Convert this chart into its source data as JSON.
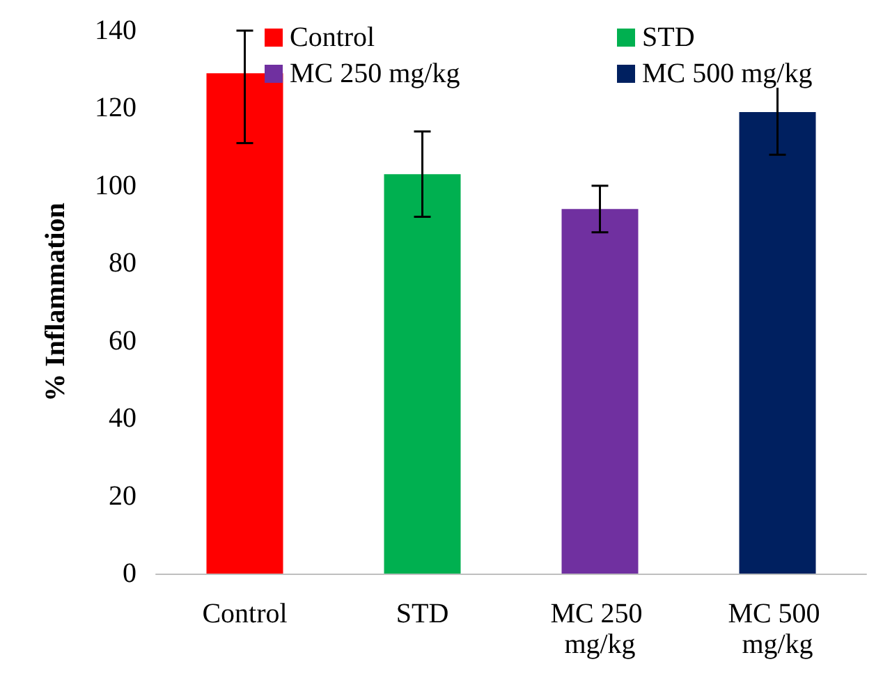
{
  "chart_data": {
    "type": "bar",
    "ylabel": "% Inflammation",
    "categories": [
      "Control",
      "STD",
      "MC 250 mg/kg",
      "MC 500 mg/kg"
    ],
    "series": [
      {
        "name": "Control",
        "color": "#ff0000",
        "values": [
          129,
          null,
          null,
          null
        ],
        "errors": [
          [
            111,
            140
          ],
          null,
          null,
          null
        ]
      },
      {
        "name": "STD",
        "color": "#00b050",
        "values": [
          null,
          103,
          null,
          null
        ],
        "errors": [
          null,
          11,
          null,
          null
        ]
      },
      {
        "name": "MC 250 mg/kg",
        "color": "#7030a0",
        "values": [
          null,
          null,
          94,
          null
        ],
        "errors": [
          null,
          null,
          6,
          null
        ]
      },
      {
        "name": "MC 500 mg/kg",
        "color": "#002060",
        "values": [
          null,
          null,
          null,
          119
        ],
        "errors": [
          null,
          null,
          null,
          11
        ]
      }
    ],
    "ylim": [
      0,
      140
    ],
    "yticks": [
      0,
      20,
      40,
      60,
      80,
      100,
      120,
      140
    ],
    "grid": false,
    "legend": "top right"
  }
}
